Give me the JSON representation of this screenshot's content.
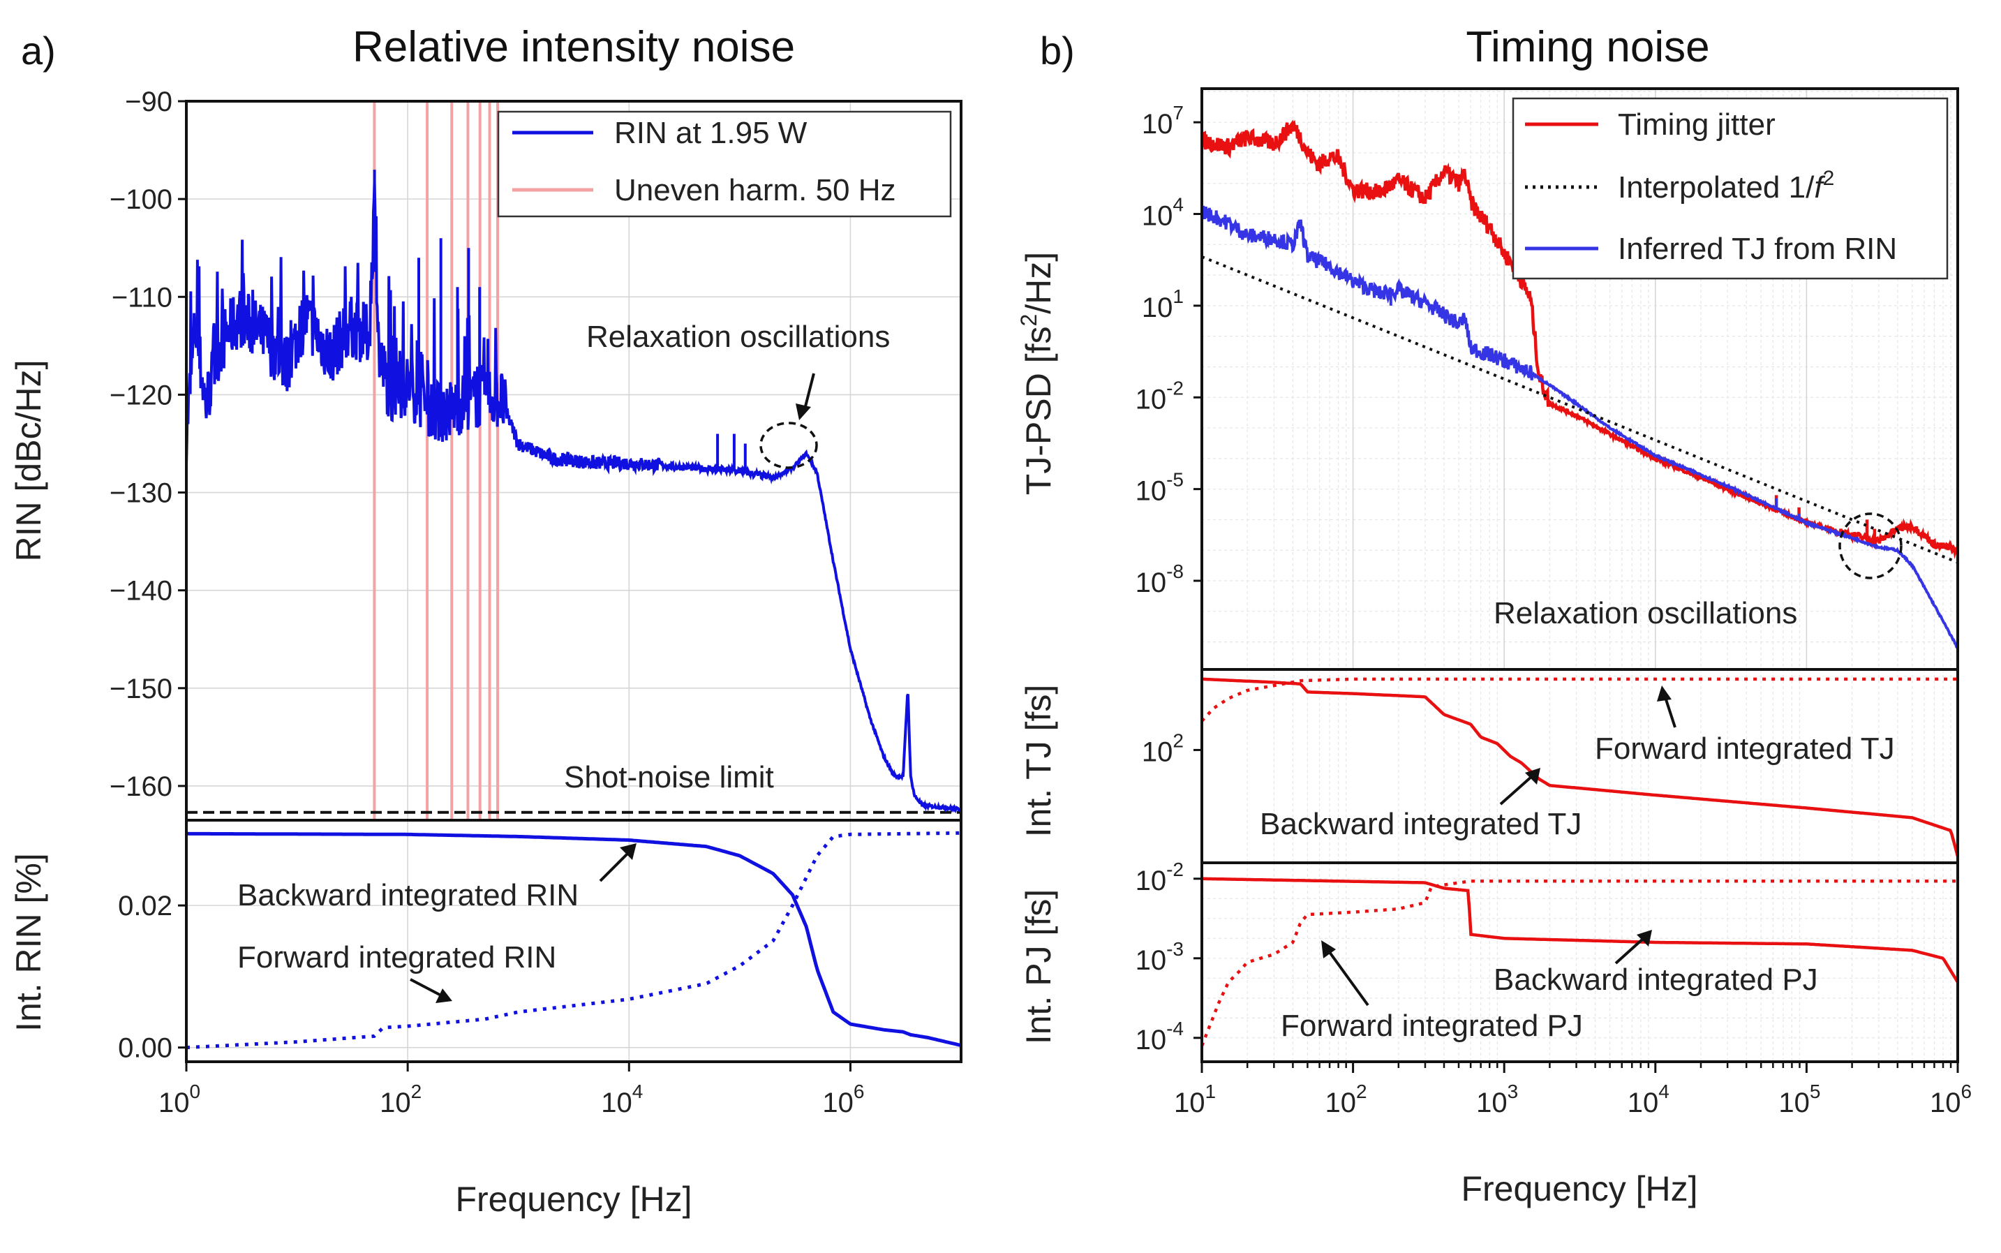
{
  "colors": {
    "rin": "#1010e0",
    "harm": "#f3a3a3",
    "tj": "#e81010",
    "tj_rin": "#3535e5",
    "interp": "#111111",
    "shot": "#111111"
  },
  "panel_a": {
    "label": "a)",
    "title": "Relative intensity noise",
    "xlabel": "Frequency [Hz]",
    "ylabel_top": "RIN [dBc/Hz]",
    "ylabel_bottom": "Int. RIN [%]",
    "x_ticks": [
      {
        "base": "10",
        "exp": "0"
      },
      {
        "base": "10",
        "exp": "2"
      },
      {
        "base": "10",
        "exp": "4"
      },
      {
        "base": "10",
        "exp": "6"
      }
    ],
    "y_ticks_top": [
      "−90",
      "−100",
      "−110",
      "−120",
      "−130",
      "−140",
      "−150",
      "−160"
    ],
    "y_ticks_bottom": [
      "0.02",
      "0.00"
    ],
    "legend": [
      "RIN at 1.95 W",
      "Uneven harm. 50 Hz"
    ],
    "annotations": {
      "relaxation": "Relaxation oscillations",
      "shot_noise": "Shot-noise limit",
      "backward": "Backward integrated RIN",
      "forward": "Forward integrated RIN"
    }
  },
  "panel_b": {
    "label": "b)",
    "title": "Timing noise",
    "xlabel": "Frequency [Hz]",
    "ylabel_top": "TJ-PSD [fs²/Hz]",
    "ylabel_mid": "Int. TJ [fs]",
    "ylabel_bottom": "Int. PJ [fs]",
    "x_ticks": [
      {
        "base": "10",
        "exp": "1"
      },
      {
        "base": "10",
        "exp": "2"
      },
      {
        "base": "10",
        "exp": "3"
      },
      {
        "base": "10",
        "exp": "4"
      },
      {
        "base": "10",
        "exp": "5"
      },
      {
        "base": "10",
        "exp": "6"
      }
    ],
    "y_ticks_top": [
      {
        "base": "10",
        "exp": "7"
      },
      {
        "base": "10",
        "exp": "4"
      },
      {
        "base": "10",
        "exp": "1"
      },
      {
        "base": "10",
        "exp": "-2"
      },
      {
        "base": "10",
        "exp": "-5"
      },
      {
        "base": "10",
        "exp": "-8"
      }
    ],
    "y_ticks_mid": [
      {
        "base": "10",
        "exp": "2"
      }
    ],
    "y_ticks_bottom": [
      {
        "base": "10",
        "exp": "-2"
      },
      {
        "base": "10",
        "exp": "-3"
      },
      {
        "base": "10",
        "exp": "-4"
      }
    ],
    "legend": [
      "Timing jitter",
      "Interpolated 1/f²",
      "Inferred TJ from RIN"
    ],
    "legend_interp_prefix": "Interpolated 1/",
    "legend_interp_var": "f",
    "legend_interp_exp": "2",
    "annotations": {
      "relaxation": "Relaxation oscillations",
      "forward_tj": "Forward integrated TJ",
      "backward_tj": "Backward integrated TJ",
      "backward_pj": "Backward integrated PJ",
      "forward_pj": "Forward integrated PJ"
    }
  },
  "chart_data": [
    {
      "type": "line",
      "title": "Relative intensity noise",
      "xlabel": "Frequency [Hz]",
      "ylabel": "RIN [dBc/Hz]",
      "xscale": "log",
      "xlim": [
        1,
        10000000
      ],
      "ylim": [
        -163.5,
        -90
      ],
      "series": [
        {
          "name": "RIN at 1.95 W",
          "x": [
            1,
            1.2,
            1.5,
            2,
            3,
            5,
            8,
            12,
            20,
            30,
            45,
            50,
            55,
            70,
            100,
            150,
            200,
            300,
            500,
            700,
            1000,
            2000,
            5000,
            10000,
            30000,
            100000,
            200000,
            300000,
            400000,
            500000,
            700000,
            1000000,
            1500000,
            2000000,
            2500000,
            3000000,
            3300000,
            3500000,
            3800000,
            4500000,
            7000000,
            10000000
          ],
          "y": [
            -124,
            -113,
            -121,
            -115,
            -112,
            -114,
            -117,
            -112,
            -116,
            -113,
            -114,
            -100,
            -116,
            -120,
            -119,
            -121,
            -122,
            -121,
            -120,
            -120.5,
            -125,
            -126.5,
            -127,
            -127,
            -127.4,
            -127.8,
            -128.5,
            -127.5,
            -126,
            -128,
            -137,
            -146,
            -153,
            -157,
            -159,
            -159,
            -150,
            -159,
            -161,
            -162,
            -162.2,
            -162.4
          ]
        },
        {
          "name": "Uneven harm. 50 Hz",
          "x": [
            50,
            150,
            250,
            350,
            450,
            550,
            650
          ]
        },
        {
          "name": "Shot-noise limit",
          "y": -162.7
        }
      ]
    },
    {
      "type": "line",
      "title": "Int. RIN",
      "xlabel": "Frequency [Hz]",
      "ylabel": "Int. RIN [%]",
      "xscale": "log",
      "xlim": [
        1,
        10000000
      ],
      "ylim": [
        -0.002,
        0.032
      ],
      "series": [
        {
          "name": "Backward integrated RIN",
          "x": [
            1,
            100,
            1000,
            10000,
            50000,
            100000,
            200000,
            300000,
            400000,
            500000,
            700000,
            1000000,
            2000000,
            3000000,
            3500000,
            5000000,
            10000000
          ],
          "y": [
            0.0301,
            0.03,
            0.0297,
            0.0292,
            0.0283,
            0.027,
            0.0245,
            0.0215,
            0.017,
            0.011,
            0.005,
            0.0033,
            0.0025,
            0.0022,
            0.0018,
            0.0014,
            0.0003
          ]
        },
        {
          "name": "Forward integrated RIN",
          "x": [
            1,
            10,
            50,
            60,
            100,
            500,
            1000,
            10000,
            50000,
            100000,
            200000,
            300000,
            500000,
            700000,
            1000000,
            10000000
          ],
          "y": [
            0,
            0.0008,
            0.0016,
            0.0028,
            0.003,
            0.004,
            0.005,
            0.0068,
            0.009,
            0.0115,
            0.015,
            0.02,
            0.027,
            0.0297,
            0.03,
            0.0302
          ]
        }
      ]
    },
    {
      "type": "line",
      "title": "Timing noise",
      "xlabel": "Frequency [Hz]",
      "ylabel": "TJ-PSD [fs²/Hz]",
      "xscale": "log",
      "yscale": "log",
      "xlim": [
        10,
        1000000
      ],
      "ylim_exp": [
        -10.9,
        8.1
      ],
      "series": [
        {
          "name": "Timing jitter",
          "x": [
            10,
            15,
            20,
            30,
            40,
            45,
            50,
            60,
            70,
            80,
            100,
            150,
            200,
            300,
            400,
            500,
            550,
            600,
            700,
            800,
            1000,
            1200,
            1500,
            1700,
            2000,
            3000,
            5000,
            10000,
            30000,
            100000,
            200000,
            300000,
            400000,
            500000,
            700000,
            1000000
          ],
          "exp": [
            6.4,
            6.2,
            6.5,
            6.3,
            6.9,
            6.5,
            6.0,
            5.6,
            5.9,
            5.8,
            4.8,
            4.7,
            5.1,
            4.5,
            5.4,
            5.0,
            5.3,
            4.4,
            3.9,
            3.6,
            2.7,
            2.2,
            1.2,
            -1.3,
            -2.2,
            -2.6,
            -3.2,
            -4.0,
            -5.0,
            -6.1,
            -6.5,
            -6.7,
            -6.3,
            -6.2,
            -6.8,
            -7.0
          ]
        },
        {
          "name": "Interpolated 1/f²",
          "x": [
            10,
            1000000
          ],
          "exp": [
            2.6,
            -7.4
          ]
        },
        {
          "name": "Inferred TJ from RIN",
          "x": [
            10,
            15,
            20,
            30,
            40,
            45,
            50,
            70,
            100,
            150,
            200,
            300,
            400,
            500,
            550,
            600,
            800,
            1000,
            1500,
            2000,
            3000,
            5000,
            10000,
            30000,
            100000,
            200000,
            300000,
            400000,
            500000,
            700000,
            1000000
          ],
          "exp": [
            4.1,
            3.7,
            3.3,
            3.2,
            3.0,
            3.7,
            2.6,
            2.3,
            1.8,
            1.4,
            1.5,
            1.1,
            0.7,
            0.4,
            0.6,
            -0.4,
            -0.6,
            -0.8,
            -1.2,
            -1.6,
            -2.2,
            -3.0,
            -3.9,
            -4.9,
            -6.1,
            -6.6,
            -6.9,
            -7.0,
            -7.5,
            -8.8,
            -10.2
          ]
        }
      ]
    },
    {
      "type": "line",
      "title": "Int. TJ",
      "xlabel": "Frequency [Hz]",
      "ylabel": "Int. TJ [fs]",
      "xscale": "log",
      "yscale": "log",
      "xlim": [
        10,
        1000000
      ],
      "ylim_exp": [
        -1.5,
        4.5
      ],
      "series": [
        {
          "name": "Backward integrated TJ",
          "x": [
            10,
            30,
            45,
            50,
            100,
            300,
            400,
            600,
            700,
            900,
            1100,
            1300,
            1700,
            2000,
            10000,
            100000,
            500000,
            900000,
            1000000
          ],
          "exp": [
            4.2,
            4.1,
            4.05,
            3.8,
            3.75,
            3.65,
            3.1,
            2.8,
            2.4,
            2.2,
            1.8,
            1.6,
            1.1,
            0.9,
            0.6,
            0.2,
            -0.1,
            -0.5,
            -1.3
          ]
        },
        {
          "name": "Forward integrated TJ",
          "x": [
            10,
            12,
            15,
            20,
            30,
            45,
            100,
            1000000
          ],
          "exp": [
            2.9,
            3.3,
            3.6,
            3.85,
            4.0,
            4.15,
            4.2,
            4.2
          ]
        }
      ]
    },
    {
      "type": "line",
      "title": "Int. PJ",
      "xlabel": "Frequency [Hz]",
      "ylabel": "Int. PJ [fs]",
      "xscale": "log",
      "yscale": "log",
      "xlim": [
        10,
        1000000
      ],
      "ylim_exp": [
        -4.3,
        -1.8
      ],
      "series": [
        {
          "name": "Backward integrated PJ",
          "x": [
            10,
            300,
            400,
            580,
            600,
            1000,
            10000,
            100000,
            500000,
            800000,
            1000000
          ],
          "exp": [
            -2.0,
            -2.05,
            -2.12,
            -2.15,
            -2.7,
            -2.75,
            -2.8,
            -2.82,
            -2.9,
            -3.0,
            -3.3
          ]
        },
        {
          "name": "Forward integrated PJ",
          "x": [
            10,
            11,
            13,
            15,
            18,
            20,
            30,
            40,
            45,
            50,
            100,
            200,
            300,
            330,
            600,
            1000000
          ],
          "exp": [
            -4.1,
            -3.9,
            -3.55,
            -3.3,
            -3.15,
            -3.05,
            -2.95,
            -2.8,
            -2.55,
            -2.45,
            -2.42,
            -2.38,
            -2.3,
            -2.1,
            -2.03,
            -2.03
          ]
        }
      ]
    }
  ]
}
